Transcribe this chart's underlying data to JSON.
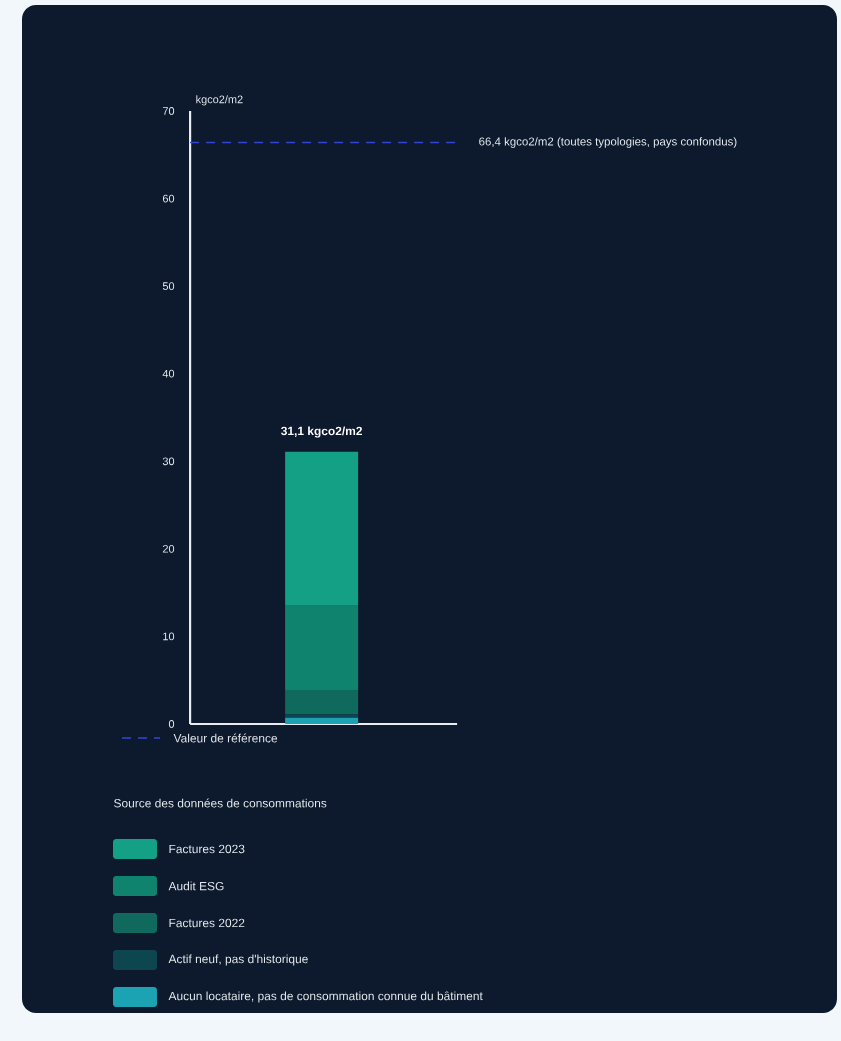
{
  "chart_data": {
    "type": "bar",
    "stacked": true,
    "categories": [
      null
    ],
    "series": [
      {
        "name": "Aucun locataire, pas de consommation connue du bâtiment",
        "color": "#1ba3b3",
        "values": [
          0.7
        ]
      },
      {
        "name": "Actif neuf, pas d'historique",
        "color": "#0e4650",
        "values": [
          0.4
        ]
      },
      {
        "name": "Factures 2022",
        "color": "#0f6a5d",
        "values": [
          2.7
        ]
      },
      {
        "name": "Audit ESG",
        "color": "#10836e",
        "values": [
          9.7
        ]
      },
      {
        "name": "Factures 2023",
        "color": "#13a085",
        "values": [
          17.6
        ]
      }
    ],
    "ylabel": "kgco2/m2",
    "ylim": [
      0,
      70
    ],
    "yticks": [
      0,
      10,
      20,
      30,
      40,
      50,
      60,
      70
    ],
    "tick_labels": "y",
    "totals": [
      "31,1 kgco2/m2"
    ],
    "ref_lines": [
      {
        "axis": "y",
        "value": 66.4,
        "label": "66,4 kgco2/m2 (toutes typologies, pays confondus)",
        "color": "#3346d6",
        "line_style": "dashed"
      }
    ],
    "annotations": [
      "Valeur de référence"
    ],
    "legend_title": "Source des données de consommations",
    "legend": "bottom"
  }
}
